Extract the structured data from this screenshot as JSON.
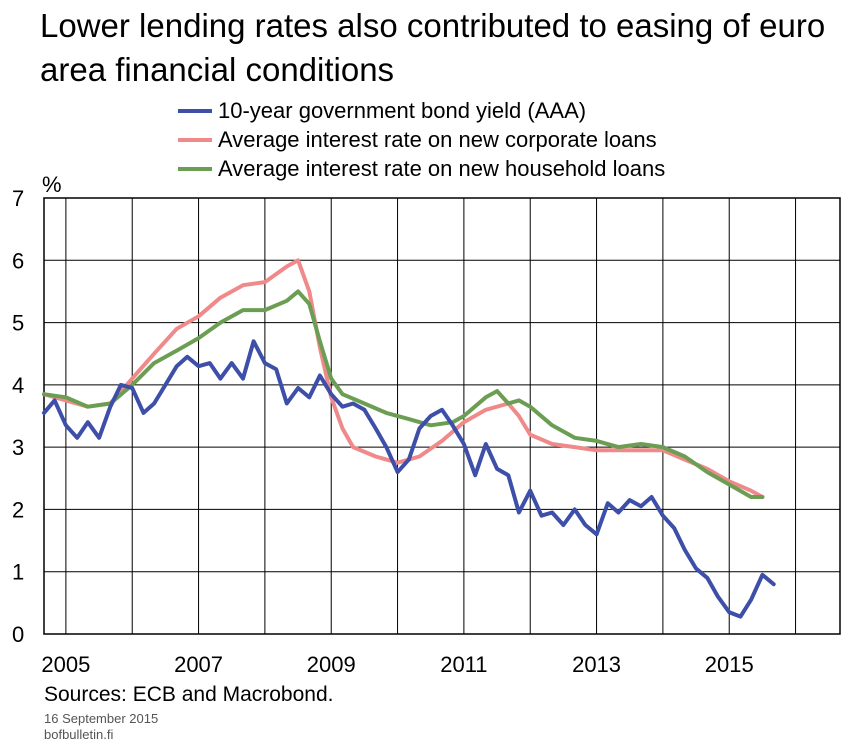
{
  "title": "Lower lending rates also contributed to easing of euro area financial conditions",
  "sources": "Sources: ECB and Macrobond.",
  "date": "16 September 2015",
  "site": "bofbulletin.fi",
  "colors": {
    "bond": "#3d4fa8",
    "corporate": "#f08a8a",
    "household": "#6b9e52",
    "grid": "#000000"
  },
  "chart_data": {
    "type": "line",
    "ylabel": "%",
    "ylim": [
      0,
      7
    ],
    "xlim": [
      2004.67,
      2016.67
    ],
    "yticks": [
      0,
      1,
      2,
      3,
      4,
      5,
      6,
      7
    ],
    "xticks": [
      2005,
      2007,
      2009,
      2011,
      2013,
      2015
    ],
    "grid": true,
    "legend_position": "top",
    "series": [
      {
        "name": "10-year government bond yield (AAA)",
        "color": "#3d4fa8",
        "x": [
          2004.67,
          2004.83,
          2005.0,
          2005.17,
          2005.33,
          2005.5,
          2005.67,
          2005.83,
          2006.0,
          2006.17,
          2006.33,
          2006.5,
          2006.67,
          2006.83,
          2007.0,
          2007.17,
          2007.33,
          2007.5,
          2007.67,
          2007.83,
          2008.0,
          2008.17,
          2008.33,
          2008.5,
          2008.67,
          2008.83,
          2009.0,
          2009.17,
          2009.33,
          2009.5,
          2009.67,
          2009.83,
          2010.0,
          2010.17,
          2010.33,
          2010.5,
          2010.67,
          2010.83,
          2011.0,
          2011.17,
          2011.33,
          2011.5,
          2011.67,
          2011.83,
          2012.0,
          2012.17,
          2012.33,
          2012.5,
          2012.67,
          2012.83,
          2013.0,
          2013.17,
          2013.33,
          2013.5,
          2013.67,
          2013.83,
          2014.0,
          2014.17,
          2014.33,
          2014.5,
          2014.67,
          2014.83,
          2015.0,
          2015.17,
          2015.33,
          2015.5,
          2015.67
        ],
        "values": [
          3.55,
          3.75,
          3.35,
          3.15,
          3.4,
          3.15,
          3.65,
          4.0,
          3.95,
          3.55,
          3.7,
          4.0,
          4.3,
          4.45,
          4.3,
          4.35,
          4.1,
          4.35,
          4.1,
          4.7,
          4.35,
          4.25,
          3.7,
          3.95,
          3.8,
          4.15,
          3.85,
          3.65,
          3.7,
          3.6,
          3.3,
          3.0,
          2.6,
          2.8,
          3.3,
          3.5,
          3.6,
          3.35,
          3.05,
          2.55,
          3.05,
          2.65,
          2.55,
          1.95,
          2.3,
          1.9,
          1.95,
          1.75,
          2.0,
          1.75,
          1.6,
          2.1,
          1.95,
          2.15,
          2.05,
          2.2,
          1.9,
          1.7,
          1.35,
          1.05,
          0.9,
          0.6,
          0.35,
          0.28,
          0.55,
          0.95,
          0.8
        ]
      },
      {
        "name": "Average interest rate on new corporate loans",
        "color": "#f08a8a",
        "x": [
          2004.67,
          2005.0,
          2005.33,
          2005.67,
          2006.0,
          2006.33,
          2006.67,
          2007.0,
          2007.33,
          2007.67,
          2008.0,
          2008.33,
          2008.5,
          2008.67,
          2008.83,
          2009.0,
          2009.17,
          2009.33,
          2009.67,
          2010.0,
          2010.33,
          2010.67,
          2011.0,
          2011.33,
          2011.67,
          2011.83,
          2012.0,
          2012.33,
          2012.67,
          2013.0,
          2013.33,
          2013.67,
          2014.0,
          2014.33,
          2014.67,
          2015.0,
          2015.33,
          2015.5
        ],
        "values": [
          3.85,
          3.75,
          3.65,
          3.7,
          4.1,
          4.5,
          4.9,
          5.1,
          5.4,
          5.6,
          5.65,
          5.9,
          6.0,
          5.5,
          4.6,
          3.8,
          3.3,
          3.0,
          2.85,
          2.75,
          2.85,
          3.1,
          3.4,
          3.6,
          3.7,
          3.5,
          3.2,
          3.05,
          3.0,
          2.95,
          2.95,
          2.95,
          2.95,
          2.8,
          2.65,
          2.45,
          2.3,
          2.2
        ]
      },
      {
        "name": "Average interest rate on new household loans",
        "color": "#6b9e52",
        "x": [
          2004.67,
          2005.0,
          2005.33,
          2005.67,
          2006.0,
          2006.33,
          2006.67,
          2007.0,
          2007.33,
          2007.67,
          2008.0,
          2008.33,
          2008.5,
          2008.67,
          2008.83,
          2009.0,
          2009.17,
          2009.5,
          2009.83,
          2010.17,
          2010.5,
          2010.83,
          2011.0,
          2011.33,
          2011.5,
          2011.67,
          2011.83,
          2012.0,
          2012.33,
          2012.67,
          2013.0,
          2013.33,
          2013.67,
          2014.0,
          2014.33,
          2014.67,
          2015.0,
          2015.33,
          2015.5
        ],
        "values": [
          3.85,
          3.8,
          3.65,
          3.7,
          4.0,
          4.35,
          4.55,
          4.75,
          5.0,
          5.2,
          5.2,
          5.35,
          5.5,
          5.3,
          4.7,
          4.1,
          3.85,
          3.7,
          3.55,
          3.45,
          3.35,
          3.4,
          3.5,
          3.8,
          3.9,
          3.7,
          3.75,
          3.65,
          3.35,
          3.15,
          3.1,
          3.0,
          3.05,
          3.0,
          2.85,
          2.6,
          2.4,
          2.2,
          2.2
        ]
      }
    ]
  }
}
